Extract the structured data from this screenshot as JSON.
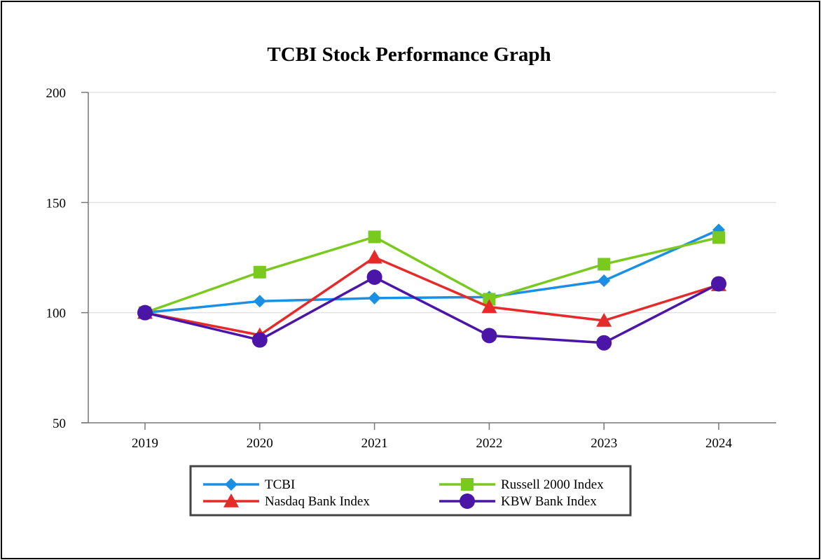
{
  "chart_data": {
    "type": "line",
    "title": "TCBI Stock Performance Graph",
    "xlabel": "",
    "ylabel": "",
    "categories": [
      "2019",
      "2020",
      "2021",
      "2022",
      "2023",
      "2024"
    ],
    "ylim": [
      50,
      200
    ],
    "yticks": [
      50,
      100,
      150,
      200
    ],
    "grid": true,
    "legend_position": "bottom",
    "series": [
      {
        "name": "TCBI",
        "marker": "diamond",
        "color": "#1a8fe3",
        "values": [
          100,
          105.2,
          106.6,
          107.1,
          114.5,
          137.6
        ]
      },
      {
        "name": "Russell 2000 Index",
        "marker": "square",
        "color": "#7ac91e",
        "values": [
          100,
          118.4,
          134.4,
          106.1,
          122.0,
          134.1
        ]
      },
      {
        "name": "Nasdaq Bank Index",
        "marker": "triangle",
        "color": "#e62a2a",
        "values": [
          100,
          89.8,
          125.1,
          102.6,
          96.4,
          112.6
        ]
      },
      {
        "name": "KBW Bank Index",
        "marker": "circle",
        "color": "#4b16a8",
        "values": [
          100,
          87.6,
          116.1,
          89.6,
          86.3,
          113.1
        ]
      }
    ]
  }
}
